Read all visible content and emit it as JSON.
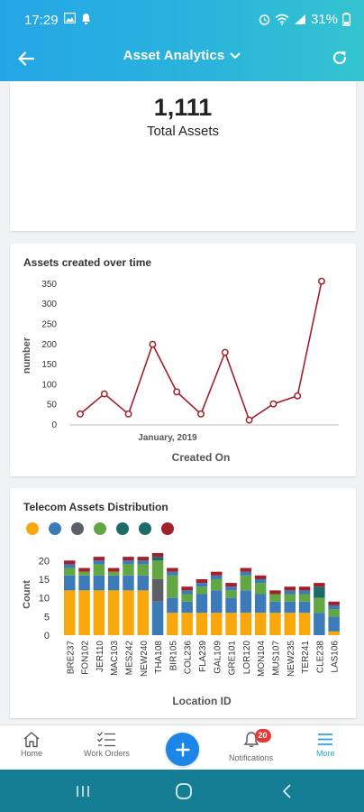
{
  "status_bar": {
    "time": "17:29",
    "battery": "31%",
    "left_icons": [
      "image-icon",
      "notification-icon"
    ],
    "right_icons": [
      "alarm-icon",
      "wifi-icon",
      "signal-icon",
      "battery-icon"
    ]
  },
  "app_bar": {
    "title": "Asset Analytics",
    "back_icon": "arrow-left-icon",
    "title_icon": "chevron-down-icon",
    "refresh_icon": "refresh-icon",
    "color_gradient": [
      "#24a6e6",
      "#33c4cf"
    ]
  },
  "total": {
    "value": "1,111",
    "label": "Total Assets"
  },
  "line_card": {
    "title": "Assets created over time"
  },
  "bar_card": {
    "title": "Telecom Assets Distribution"
  },
  "chart_data": [
    {
      "type": "line",
      "title": "Assets created over time",
      "xlabel": "Created On",
      "ylabel": "number",
      "x_tick_label": "January, 2019",
      "yticks": [
        0,
        50,
        100,
        150,
        200,
        250,
        300,
        350
      ],
      "ylim": [
        0,
        370
      ],
      "color": "#a3202b",
      "values": [
        25,
        75,
        25,
        198,
        80,
        25,
        178,
        10,
        50,
        70,
        355
      ],
      "grid": false,
      "legend": "none"
    },
    {
      "type": "bar",
      "stacked": true,
      "title": "Telecom Assets Distribution",
      "xlabel": "Location ID",
      "ylabel": "Count",
      "yticks": [
        0,
        5,
        10,
        15,
        20
      ],
      "ylim": [
        0,
        22
      ],
      "legend": "top-left",
      "categories": [
        "BRE237",
        "FON102",
        "JER110",
        "MAC103",
        "MES242",
        "NEW240",
        "THA108",
        "BIR105",
        "COL236",
        "FLA239",
        "GAL109",
        "GRE101",
        "LOR120",
        "MON104",
        "MUS107",
        "NEW235",
        "TER241",
        "CLE238",
        "LAS106"
      ],
      "series": [
        {
          "color": "#f8a80c",
          "values": [
            12,
            12,
            12,
            12,
            12,
            12,
            0,
            6,
            6,
            6,
            6,
            6,
            6,
            6,
            6,
            6,
            6,
            0,
            1
          ]
        },
        {
          "color": "#3d7ab8",
          "values": [
            4,
            4,
            4,
            4,
            4,
            4,
            9,
            4,
            3,
            5,
            6,
            4,
            6,
            5,
            3,
            3,
            3,
            6,
            4
          ]
        },
        {
          "color": "#5c5f66",
          "values": [
            0,
            0,
            0,
            0,
            0,
            0,
            6,
            0,
            0,
            0,
            0,
            0,
            0,
            0,
            0,
            0,
            0,
            0,
            0
          ]
        },
        {
          "color": "#63a744",
          "values": [
            2,
            1,
            3,
            1,
            3,
            3,
            5,
            6,
            2,
            2,
            3,
            2,
            4,
            3,
            2,
            2,
            2,
            4,
            2
          ]
        },
        {
          "color": "#3d7ab8",
          "values": [
            1,
            0,
            1,
            0,
            1,
            1,
            0,
            1,
            1,
            1,
            1,
            1,
            1,
            1,
            0,
            1,
            1,
            0,
            1
          ]
        },
        {
          "color": "#1d6b67",
          "values": [
            0,
            0,
            0,
            0,
            0,
            0,
            1,
            0,
            0,
            0,
            0,
            0,
            0,
            0,
            0,
            0,
            0,
            3,
            0
          ]
        },
        {
          "color": "#a3202b",
          "values": [
            1,
            1,
            1,
            1,
            1,
            1,
            1,
            1,
            1,
            1,
            1,
            1,
            1,
            1,
            1,
            1,
            1,
            1,
            1
          ]
        }
      ]
    }
  ],
  "legend_colors": [
    "#f8a80c",
    "#3d7ab8",
    "#5c5f66",
    "#63a744",
    "#1d6b67",
    "#1d6b67",
    "#a3202b"
  ],
  "bottom_nav": {
    "home": {
      "label": "Home",
      "icon": "home-icon"
    },
    "work_orders": {
      "label": "Work Orders",
      "icon": "checklist-icon"
    },
    "add": {
      "icon": "plus-icon",
      "color": "#1b86e8"
    },
    "notifications": {
      "label": "Notifications",
      "icon": "bell-icon",
      "badge": "20"
    },
    "more": {
      "label": "More",
      "icon": "menu-icon",
      "active_color": "#2aa2e0"
    }
  },
  "system_nav": {
    "recents_icon": "recents-icon",
    "home_icon": "circle-home-icon",
    "back_icon": "chevron-left-icon",
    "color": "#157e95"
  }
}
